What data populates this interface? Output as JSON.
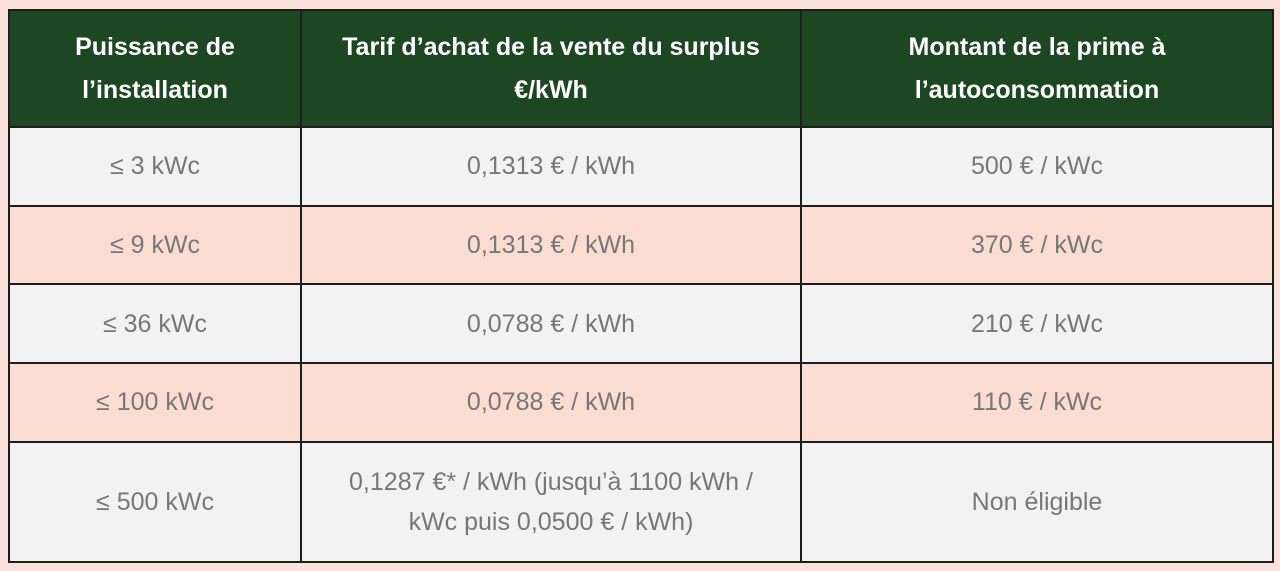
{
  "table": {
    "headers": [
      "Puissance de\nl’installation",
      "Tarif d’achat de la vente du surplus\n€/kWh",
      "Montant de la prime à\nl’autoconsommation"
    ],
    "rows": [
      {
        "cells": [
          "≤ 3 kWc",
          "0,1313 € / kWh",
          "500 € / kWc"
        ]
      },
      {
        "cells": [
          "≤ 9 kWc",
          "0,1313 € / kWh",
          "370 € / kWc"
        ]
      },
      {
        "cells": [
          "≤ 36 kWc",
          "0,0788 € / kWh",
          "210 € / kWc"
        ]
      },
      {
        "cells": [
          "≤ 100 kWc",
          "0,0788 € / kWh",
          "110 € / kWc"
        ]
      },
      {
        "cells": [
          "≤ 500 kWc",
          "0,1287 €* / kWh (jusqu’à 1100 kWh /\nkWc puis 0,0500 € / kWh)",
          "Non éligible"
        ]
      }
    ]
  },
  "colors": {
    "header_background": "#1d4723",
    "header_text": "#ffffff",
    "row_gray": "#f2f2f2",
    "row_pink": "#fbdcd3",
    "page_background": "#fae1d9",
    "cell_text": "#777777",
    "border": "#1d1d1d"
  },
  "chart_data": {
    "type": "table",
    "title": "",
    "columns": [
      "Puissance de l’installation",
      "Tarif d’achat de la vente du surplus €/kWh",
      "Montant de la prime à l’autoconsommation"
    ],
    "rows": [
      [
        "≤ 3 kWc",
        "0,1313 € / kWh",
        "500 € / kWc"
      ],
      [
        "≤ 9 kWc",
        "0,1313 € / kWh",
        "370 € / kWc"
      ],
      [
        "≤ 36 kWc",
        "0,0788 € / kWh",
        "210 € / kWc"
      ],
      [
        "≤ 100 kWc",
        "0,0788 € / kWh",
        "110 € / kWc"
      ],
      [
        "≤ 500 kWc",
        "0,1287 €* / kWh (jusqu’à 1100 kWh / kWc puis 0,0500 € / kWh)",
        "Non éligible"
      ]
    ]
  }
}
